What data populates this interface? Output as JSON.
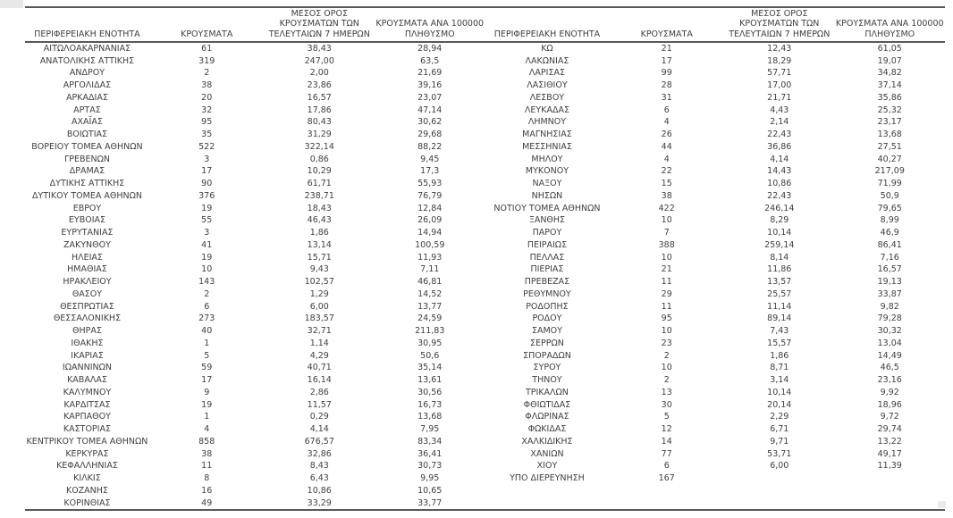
{
  "colors": {
    "border": "#56585a",
    "text": "#3f3f3f",
    "background": "#ffffff"
  },
  "headers": {
    "region": "ΠΕΡΙΦΕΡΕΙΑΚΗ ΕΝΟΤΗΤΑ",
    "cases": "ΚΡΟΥΣΜΑΤΑ",
    "avg7": "ΜΕΣΟΣ ΟΡΟΣ\nΚΡΟΥΣΜΑΤΩΝ ΤΩΝ\nΤΕΛΕΥΤΑΙΩΝ 7 ΗΜΕΡΩΝ",
    "per100k": "ΚΡΟΥΣΜΑΤΑ ΑΝΑ 100000\nΠΛΗΘΥΣΜΟ"
  },
  "tables": [
    {
      "rows": [
        [
          "ΑΙΤΩΛΟΑΚΑΡΝΑΝΙΑΣ",
          "61",
          "38,43",
          "28,94"
        ],
        [
          "ΑΝΑΤΟΛΙΚΗΣ ΑΤΤΙΚΗΣ",
          "319",
          "247,00",
          "63,5"
        ],
        [
          "ΑΝΔΡΟΥ",
          "2",
          "2,00",
          "21,69"
        ],
        [
          "ΑΡΓΟΛΙΔΑΣ",
          "38",
          "23,86",
          "39,16"
        ],
        [
          "ΑΡΚΑΔΙΑΣ",
          "20",
          "16,57",
          "23,07"
        ],
        [
          "ΑΡΤΑΣ",
          "32",
          "17,86",
          "47,14"
        ],
        [
          "ΑΧΑΪΑΣ",
          "95",
          "80,43",
          "30,62"
        ],
        [
          "ΒΟΙΩΤΙΑΣ",
          "35",
          "31,29",
          "29,68"
        ],
        [
          "ΒΟΡΕΙΟΥ ΤΟΜΕΑ ΑΘΗΝΩΝ",
          "522",
          "322,14",
          "88,22"
        ],
        [
          "ΓΡΕΒΕΝΩΝ",
          "3",
          "0,86",
          "9,45"
        ],
        [
          "ΔΡΑΜΑΣ",
          "17",
          "10,29",
          "17,3"
        ],
        [
          "ΔΥΤΙΚΗΣ ΑΤΤΙΚΗΣ",
          "90",
          "61,71",
          "55,93"
        ],
        [
          "ΔΥΤΙΚΟΥ ΤΟΜΕΑ ΑΘΗΝΩΝ",
          "376",
          "238,71",
          "76,79"
        ],
        [
          "ΕΒΡΟΥ",
          "19",
          "18,43",
          "12,84"
        ],
        [
          "ΕΥΒΟΙΑΣ",
          "55",
          "46,43",
          "26,09"
        ],
        [
          "ΕΥΡΥΤΑΝΙΑΣ",
          "3",
          "1,86",
          "14,94"
        ],
        [
          "ΖΑΚΥΝΘΟΥ",
          "41",
          "13,14",
          "100,59"
        ],
        [
          "ΗΛΕΙΑΣ",
          "19",
          "15,71",
          "11,93"
        ],
        [
          "ΗΜΑΘΙΑΣ",
          "10",
          "9,43",
          "7,11"
        ],
        [
          "ΗΡΑΚΛΕΙΟΥ",
          "143",
          "102,57",
          "46,81"
        ],
        [
          "ΘΑΣΟΥ",
          "2",
          "1,29",
          "14,52"
        ],
        [
          "ΘΕΣΠΡΩΤΙΑΣ",
          "6",
          "6,00",
          "13,77"
        ],
        [
          "ΘΕΣΣΑΛΟΝΙΚΗΣ",
          "273",
          "183,57",
          "24,59"
        ],
        [
          "ΘΗΡΑΣ",
          "40",
          "32,71",
          "211,83"
        ],
        [
          "ΙΘΑΚΗΣ",
          "1",
          "1,14",
          "30,95"
        ],
        [
          "ΙΚΑΡΙΑΣ",
          "5",
          "4,29",
          "50,6"
        ],
        [
          "ΙΩΑΝΝΙΝΩΝ",
          "59",
          "40,71",
          "35,14"
        ],
        [
          "ΚΑΒΑΛΑΣ",
          "17",
          "16,14",
          "13,61"
        ],
        [
          "ΚΑΛΥΜΝΟΥ",
          "9",
          "2,86",
          "30,56"
        ],
        [
          "ΚΑΡΔΙΤΣΑΣ",
          "19",
          "11,57",
          "16,73"
        ],
        [
          "ΚΑΡΠΑΘΟΥ",
          "1",
          "0,29",
          "13,68"
        ],
        [
          "ΚΑΣΤΟΡΙΑΣ",
          "4",
          "4,14",
          "7,95"
        ],
        [
          "ΚΕΝΤΡΙΚΟΥ ΤΟΜΕΑ ΑΘΗΝΩΝ",
          "858",
          "676,57",
          "83,34"
        ],
        [
          "ΚΕΡΚΥΡΑΣ",
          "38",
          "32,86",
          "36,41"
        ],
        [
          "ΚΕΦΑΛΛΗΝΙΑΣ",
          "11",
          "8,43",
          "30,73"
        ],
        [
          "ΚΙΛΚΙΣ",
          "8",
          "6,43",
          "9,95"
        ],
        [
          "ΚΟΖΑΝΗΣ",
          "16",
          "10,86",
          "10,65"
        ],
        [
          "ΚΟΡΙΝΘΙΑΣ",
          "49",
          "33,29",
          "33,77"
        ]
      ]
    },
    {
      "rows": [
        [
          "ΚΩ",
          "21",
          "12,43",
          "61,05"
        ],
        [
          "ΛΑΚΩΝΙΑΣ",
          "17",
          "18,29",
          "19,07"
        ],
        [
          "ΛΑΡΙΣΑΣ",
          "99",
          "57,71",
          "34,82"
        ],
        [
          "ΛΑΣΙΘΙΟΥ",
          "28",
          "17,00",
          "37,14"
        ],
        [
          "ΛΕΣΒΟΥ",
          "31",
          "21,71",
          "35,86"
        ],
        [
          "ΛΕΥΚΑΔΑΣ",
          "6",
          "4,43",
          "25,32"
        ],
        [
          "ΛΗΜΝΟΥ",
          "4",
          "2,14",
          "23,17"
        ],
        [
          "ΜΑΓΝΗΣΙΑΣ",
          "26",
          "22,43",
          "13,68"
        ],
        [
          "ΜΕΣΣΗΝΙΑΣ",
          "44",
          "36,86",
          "27,51"
        ],
        [
          "ΜΗΛΟΥ",
          "4",
          "4,14",
          "40,27"
        ],
        [
          "ΜΥΚΟΝΟΥ",
          "22",
          "14,43",
          "217,09"
        ],
        [
          "ΝΑΞΟΥ",
          "15",
          "10,86",
          "71,99"
        ],
        [
          "ΝΗΣΩΝ",
          "38",
          "22,43",
          "50,9"
        ],
        [
          "ΝΟΤΙΟΥ ΤΟΜΕΑ ΑΘΗΝΩΝ",
          "422",
          "246,14",
          "79,65"
        ],
        [
          "ΞΑΝΘΗΣ",
          "10",
          "8,29",
          "8,99"
        ],
        [
          "ΠΑΡΟΥ",
          "7",
          "10,14",
          "46,9"
        ],
        [
          "ΠΕΙΡΑΙΩΣ",
          "388",
          "259,14",
          "86,41"
        ],
        [
          "ΠΕΛΛΑΣ",
          "10",
          "8,14",
          "7,16"
        ],
        [
          "ΠΙΕΡΙΑΣ",
          "21",
          "11,86",
          "16,57"
        ],
        [
          "ΠΡΕΒΕΖΑΣ",
          "11",
          "13,57",
          "19,13"
        ],
        [
          "ΡΕΘΥΜΝΟΥ",
          "29",
          "25,57",
          "33,87"
        ],
        [
          "ΡΟΔΟΠΗΣ",
          "11",
          "11,14",
          "9,82"
        ],
        [
          "ΡΟΔΟΥ",
          "95",
          "89,14",
          "79,28"
        ],
        [
          "ΣΑΜΟΥ",
          "10",
          "7,43",
          "30,32"
        ],
        [
          "ΣΕΡΡΩΝ",
          "23",
          "15,57",
          "13,04"
        ],
        [
          "ΣΠΟΡΑΔΩΝ",
          "2",
          "1,86",
          "14,49"
        ],
        [
          "ΣΥΡΟΥ",
          "10",
          "8,71",
          "46,5"
        ],
        [
          "ΤΗΝΟΥ",
          "2",
          "3,14",
          "23,16"
        ],
        [
          "ΤΡΙΚΑΛΩΝ",
          "13",
          "10,14",
          "9,92"
        ],
        [
          "ΦΘΙΩΤΙΔΑΣ",
          "30",
          "20,14",
          "18,96"
        ],
        [
          "ΦΛΩΡΙΝΑΣ",
          "5",
          "2,29",
          "9,72"
        ],
        [
          "ΦΩΚΙΔΑΣ",
          "12",
          "6,71",
          "29,74"
        ],
        [
          "ΧΑΛΚΙΔΙΚΗΣ",
          "14",
          "9,71",
          "13,22"
        ],
        [
          "ΧΑΝΙΩΝ",
          "77",
          "53,71",
          "49,17"
        ],
        [
          "ΧΙΟΥ",
          "6",
          "6,00",
          "11,39"
        ],
        [
          "ΥΠΟ ΔΙΕΡΕΥΝΗΣΗ",
          "167",
          "",
          ""
        ]
      ]
    }
  ]
}
